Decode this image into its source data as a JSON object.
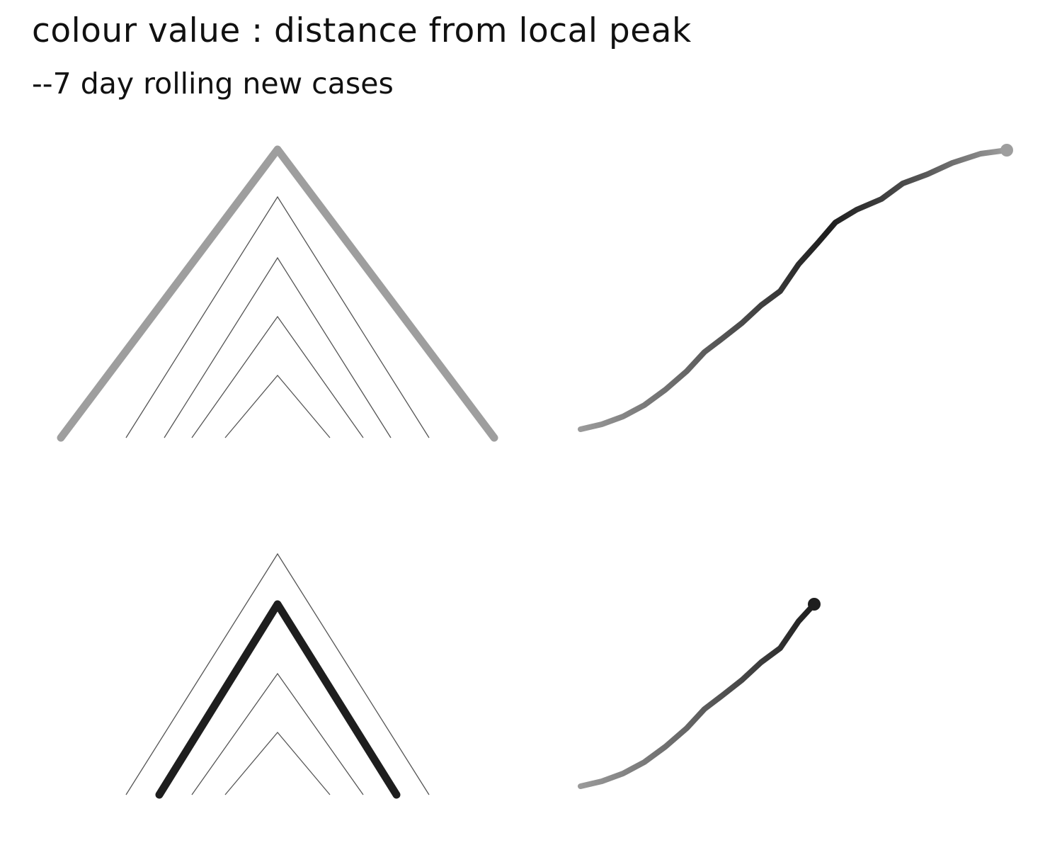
{
  "header": {
    "title": "colour value : distance from local peak",
    "subtitle": "--7 day rolling new cases"
  },
  "colors": {
    "background": "#ffffff",
    "text": "#111111",
    "thin_line": "#555555",
    "light_grey": "#9e9e9e",
    "mid_grey": "#555555",
    "dark": "#1e1e1e"
  },
  "panels": [
    {
      "name": "top",
      "highlight_color": "#9e9e9e",
      "curve_extent": 1.0,
      "curve_end_color": "#9e9e9e"
    },
    {
      "name": "bottom",
      "highlight_color": "#1e1e1e",
      "curve_extent": 0.55,
      "curve_end_color": "#1e1e1e"
    }
  ]
}
